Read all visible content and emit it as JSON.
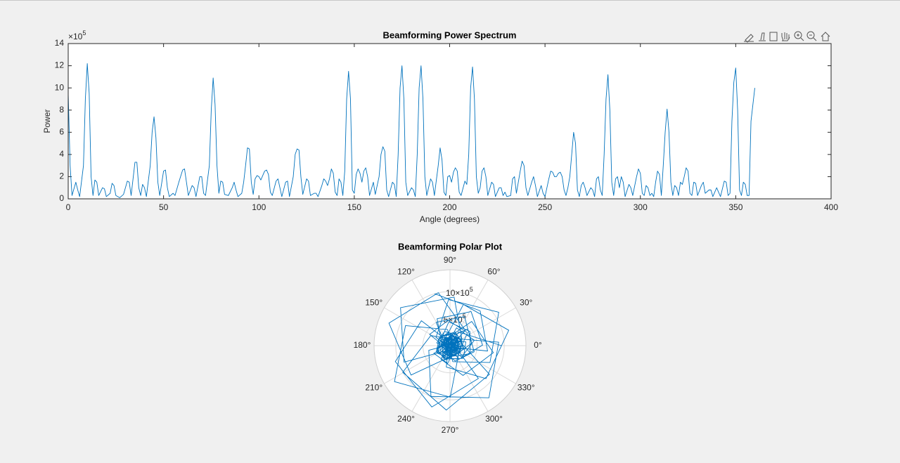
{
  "chart_data": [
    {
      "type": "line",
      "title": "Beamforming Power Spectrum",
      "xlabel": "Angle (degrees)",
      "ylabel": "Power",
      "y_exponent": {
        "base": "×10",
        "power": "5"
      },
      "xlim": [
        0,
        400
      ],
      "xticks": [
        0,
        50,
        100,
        150,
        200,
        250,
        300,
        350,
        400
      ],
      "ylim": [
        0,
        14
      ],
      "yticks": [
        0,
        2,
        4,
        6,
        8,
        10,
        12,
        14
      ],
      "grid": false,
      "color": "#0072bd",
      "x": [
        0,
        1,
        2,
        4,
        5,
        6,
        8,
        9,
        10,
        11,
        12,
        13,
        14,
        15,
        16,
        18,
        19,
        20,
        22,
        23,
        24,
        25,
        27,
        29,
        31,
        32,
        33,
        35,
        36,
        37,
        38,
        39,
        40,
        41,
        43,
        44,
        45,
        46,
        47,
        48,
        50,
        51,
        52,
        53,
        55,
        56,
        58,
        60,
        61,
        62,
        63,
        65,
        66,
        67,
        69,
        70,
        71,
        72,
        74,
        75,
        76,
        77,
        78,
        79,
        80,
        81,
        82,
        84,
        86,
        87,
        88,
        89,
        91,
        92,
        93,
        94,
        95,
        96,
        97,
        98,
        99,
        100,
        101,
        102,
        103,
        104,
        105,
        106,
        107,
        109,
        110,
        111,
        112,
        114,
        115,
        116,
        118,
        119,
        120,
        121,
        122,
        123,
        125,
        126,
        127,
        129,
        130,
        131,
        133,
        134,
        135,
        136,
        137,
        138,
        139,
        140,
        141,
        142,
        143,
        144,
        145,
        146,
        147,
        148,
        149,
        150,
        151,
        152,
        153,
        154,
        155,
        156,
        157,
        158,
        160,
        161,
        163,
        164,
        165,
        166,
        167,
        168,
        170,
        171,
        172,
        173,
        174,
        175,
        176,
        177,
        178,
        180,
        181,
        182,
        183,
        184,
        185,
        186,
        187,
        188,
        190,
        191,
        192,
        194,
        195,
        196,
        197,
        198,
        199,
        200,
        201,
        202,
        203,
        204,
        205,
        206,
        208,
        209,
        210,
        211,
        212,
        213,
        214,
        215,
        216,
        217,
        218,
        219,
        220,
        222,
        223,
        224,
        226,
        227,
        228,
        229,
        230,
        232,
        233,
        234,
        235,
        237,
        238,
        239,
        240,
        241,
        243,
        244,
        245,
        246,
        248,
        249,
        250,
        252,
        253,
        254,
        255,
        256,
        257,
        258,
        259,
        260,
        261,
        262,
        263,
        264,
        265,
        266,
        267,
        268,
        269,
        270,
        271,
        272,
        274,
        275,
        276,
        277,
        278,
        279,
        280,
        281,
        282,
        283,
        284,
        285,
        286,
        287,
        288,
        289,
        290,
        291,
        292,
        294,
        295,
        296,
        298,
        299,
        300,
        301,
        302,
        303,
        304,
        305,
        306,
        307,
        308,
        309,
        310,
        311,
        312,
        313,
        314,
        315,
        316,
        317,
        318,
        319,
        320,
        321,
        322,
        323,
        324,
        325,
        326,
        327,
        328,
        329,
        330,
        332,
        333,
        334,
        336,
        337,
        338,
        340,
        341,
        342,
        344,
        345,
        346,
        347,
        348,
        349,
        350,
        351,
        352,
        353,
        354,
        355,
        356,
        357,
        358,
        359,
        360
      ],
      "values": [
        9.5,
        3,
        0.3,
        1.5,
        0.8,
        0.2,
        3,
        9,
        12.2,
        9.5,
        2,
        0.3,
        1.7,
        1.5,
        0.3,
        1,
        0.9,
        0.2,
        0.5,
        1.4,
        1.2,
        0.3,
        0.1,
        0.4,
        1.6,
        1.5,
        0.3,
        3.3,
        3.3,
        1,
        0.3,
        1.3,
        1,
        0.2,
        3,
        6,
        7.4,
        5.5,
        1.5,
        0.3,
        2.5,
        2.6,
        1,
        0.2,
        0.5,
        0.3,
        1.5,
        2.6,
        2.7,
        1.5,
        0.3,
        1.2,
        1,
        0.2,
        2,
        2,
        0.5,
        0.3,
        3,
        8,
        10.9,
        8.5,
        3,
        0.5,
        1.6,
        1.5,
        0.4,
        0.3,
        1,
        1.5,
        0.8,
        0.2,
        0.5,
        1.5,
        3,
        4.6,
        4.5,
        1.5,
        0.4,
        1.8,
        2.1,
        2,
        1.7,
        2.1,
        2.5,
        2.6,
        2.2,
        0.6,
        0.3,
        1.6,
        1.8,
        1,
        0.2,
        1.5,
        1.6,
        0.2,
        2,
        4,
        4.5,
        4.4,
        2,
        0.4,
        1.8,
        1.6,
        0.3,
        0.5,
        0.5,
        0.2,
        1.2,
        1.8,
        1.6,
        1.2,
        1.8,
        2.7,
        2.3,
        0.6,
        0.3,
        1.8,
        1.5,
        0.3,
        2.5,
        9,
        11.5,
        9,
        0.8,
        0.5,
        2.2,
        2.7,
        2.3,
        1.5,
        2.5,
        2.8,
        2,
        0.3,
        1.5,
        0.4,
        2,
        4,
        4.7,
        4.3,
        0.8,
        0.2,
        1.5,
        1.3,
        0.2,
        4,
        10,
        12,
        9,
        1.5,
        0.3,
        1,
        0.8,
        0.2,
        4,
        10,
        12,
        9,
        2,
        0.3,
        1.8,
        1.5,
        0.3,
        3,
        4.6,
        3.5,
        0.6,
        0.3,
        2,
        2.1,
        1.5,
        2.4,
        2.8,
        2.5,
        0.6,
        0.3,
        1.6,
        1.3,
        4,
        10,
        11.9,
        9,
        2,
        0.5,
        1,
        2.5,
        2.8,
        2,
        0.3,
        1.5,
        1.3,
        0.2,
        1,
        1,
        0.3,
        0.6,
        0.2,
        0.3,
        1.8,
        2,
        0.5,
        2.5,
        3.4,
        3,
        1,
        0.3,
        1.5,
        2,
        1.2,
        0.2,
        1.2,
        0.5,
        0.2,
        1.8,
        2.5,
        2.4,
        2,
        2,
        2.3,
        2.4,
        2,
        0.8,
        0.3,
        1,
        2,
        4,
        6,
        5,
        0.8,
        0.2,
        1.2,
        1.5,
        1,
        0.3,
        1,
        0.8,
        0.2,
        1.8,
        2,
        0.8,
        0.3,
        4,
        9,
        11.2,
        8,
        1.5,
        0.3,
        1.8,
        2,
        1,
        2,
        1.5,
        0.2,
        1.3,
        1,
        0.3,
        2,
        2.7,
        2.3,
        0.5,
        0.3,
        1.2,
        1,
        0.3,
        0.5,
        0.2,
        1.5,
        2.5,
        2.2,
        0.3,
        3,
        6,
        8.1,
        6,
        1.5,
        0.3,
        1.2,
        1,
        0.3,
        1.5,
        1.3,
        2,
        2.8,
        2.5,
        0.5,
        0.3,
        1.5,
        1.4,
        0.3,
        1.2,
        1.5,
        0.5,
        0.8,
        0.8,
        0.2,
        1,
        0.6,
        0.2,
        1.6,
        1.5,
        0.3,
        0.5,
        7,
        10.5,
        11.8,
        8,
        0.8,
        0.3,
        1.5,
        1.3,
        0.3,
        0.3,
        7,
        8.5,
        10
      ]
    },
    {
      "type": "polar",
      "title": "Beamforming Polar Plot",
      "theta_unit": "radians",
      "color": "#0072bd",
      "r_exponent": {
        "base": "×10",
        "power": "5"
      },
      "rlim": [
        0,
        14
      ],
      "rticks": [
        5,
        10
      ],
      "thetaticks": [
        {
          "value": 0,
          "label": "0°"
        },
        {
          "value": 30,
          "label": "30°"
        },
        {
          "value": 60,
          "label": "60°"
        },
        {
          "value": 90,
          "label": "90°"
        },
        {
          "value": 120,
          "label": "120°"
        },
        {
          "value": 150,
          "label": "150°"
        },
        {
          "value": 180,
          "label": "180°"
        },
        {
          "value": 210,
          "label": "210°"
        },
        {
          "value": 240,
          "label": "240°"
        },
        {
          "value": 270,
          "label": "270°"
        },
        {
          "value": 300,
          "label": "300°"
        },
        {
          "value": 330,
          "label": "330°"
        }
      ],
      "theta": [
        0,
        1,
        2,
        4,
        5,
        6,
        8,
        9,
        10,
        11,
        12,
        13,
        14,
        15,
        16,
        18,
        19,
        20,
        22,
        23,
        24,
        25,
        27,
        29,
        31,
        32,
        33,
        35,
        36,
        37,
        38,
        39,
        40,
        41,
        43,
        44,
        45,
        46,
        47,
        48,
        50,
        51,
        52,
        53,
        55,
        56,
        58,
        60,
        61,
        62,
        63,
        65,
        66,
        67,
        69,
        70,
        71,
        72,
        74,
        75,
        76,
        77,
        78,
        79,
        80,
        81,
        82,
        84,
        86,
        87,
        88,
        89,
        91,
        92,
        93,
        94,
        95,
        96,
        97,
        98,
        99,
        100,
        101,
        102,
        103,
        104,
        105,
        106,
        107,
        109,
        110,
        111,
        112,
        114,
        115,
        116,
        118,
        119,
        120,
        121,
        122,
        123,
        125,
        126,
        127,
        129,
        130,
        131,
        133,
        134,
        135,
        136,
        137,
        138,
        139,
        140,
        141,
        142,
        143,
        144,
        145,
        146,
        147,
        148,
        149,
        150,
        151,
        152,
        153,
        154,
        155,
        156,
        157,
        158,
        160,
        161,
        163,
        164,
        165,
        166,
        167,
        168,
        170,
        171,
        172,
        173,
        174,
        175,
        176,
        177,
        178,
        180,
        181,
        182,
        183,
        184,
        185,
        186,
        187,
        188,
        190,
        191,
        192,
        194,
        195,
        196,
        197,
        198,
        199,
        200,
        201,
        202,
        203,
        204,
        205,
        206,
        208,
        209,
        210,
        211,
        212,
        213,
        214,
        215,
        216,
        217,
        218,
        219,
        220,
        222,
        223,
        224,
        226,
        227,
        228,
        229,
        230,
        232,
        233,
        234,
        235,
        237,
        238,
        239,
        240,
        241,
        243,
        244,
        245,
        246,
        248,
        249,
        250,
        252,
        253,
        254,
        255,
        256,
        257,
        258,
        259,
        260,
        261,
        262,
        263,
        264,
        265,
        266,
        267,
        268,
        269,
        270,
        271,
        272,
        274,
        275,
        276,
        277,
        278,
        279,
        280,
        281,
        282,
        283,
        284,
        285,
        286,
        287,
        288,
        289,
        290,
        291,
        292,
        294,
        295,
        296,
        298,
        299,
        300,
        301,
        302,
        303,
        304,
        305,
        306,
        307,
        308,
        309,
        310,
        311,
        312,
        313,
        314,
        315,
        316,
        317,
        318,
        319,
        320,
        321,
        322,
        323,
        324,
        325,
        326,
        327,
        328,
        329,
        330,
        332,
        333,
        334,
        336,
        337,
        338,
        340,
        341,
        342,
        344,
        345,
        346,
        347,
        348,
        349,
        350,
        351,
        352,
        353,
        354,
        355,
        356,
        357,
        358,
        359,
        360
      ],
      "r": [
        9.5,
        3,
        0.3,
        1.5,
        0.8,
        0.2,
        3,
        9,
        12.2,
        9.5,
        2,
        0.3,
        1.7,
        1.5,
        0.3,
        1,
        0.9,
        0.2,
        0.5,
        1.4,
        1.2,
        0.3,
        0.1,
        0.4,
        1.6,
        1.5,
        0.3,
        3.3,
        3.3,
        1,
        0.3,
        1.3,
        1,
        0.2,
        3,
        6,
        7.4,
        5.5,
        1.5,
        0.3,
        2.5,
        2.6,
        1,
        0.2,
        0.5,
        0.3,
        1.5,
        2.6,
        2.7,
        1.5,
        0.3,
        1.2,
        1,
        0.2,
        2,
        2,
        0.5,
        0.3,
        3,
        8,
        10.9,
        8.5,
        3,
        0.5,
        1.6,
        1.5,
        0.4,
        0.3,
        1,
        1.5,
        0.8,
        0.2,
        0.5,
        1.5,
        3,
        4.6,
        4.5,
        1.5,
        0.4,
        1.8,
        2.1,
        2,
        1.7,
        2.1,
        2.5,
        2.6,
        2.2,
        0.6,
        0.3,
        1.6,
        1.8,
        1,
        0.2,
        1.5,
        1.6,
        0.2,
        2,
        4,
        4.5,
        4.4,
        2,
        0.4,
        1.8,
        1.6,
        0.3,
        0.5,
        0.5,
        0.2,
        1.2,
        1.8,
        1.6,
        1.2,
        1.8,
        2.7,
        2.3,
        0.6,
        0.3,
        1.8,
        1.5,
        0.3,
        2.5,
        9,
        11.5,
        9,
        0.8,
        0.5,
        2.2,
        2.7,
        2.3,
        1.5,
        2.5,
        2.8,
        2,
        0.3,
        1.5,
        0.4,
        2,
        4,
        4.7,
        4.3,
        0.8,
        0.2,
        1.5,
        1.3,
        0.2,
        4,
        10,
        12,
        9,
        1.5,
        0.3,
        1,
        0.8,
        0.2,
        4,
        10,
        12,
        9,
        2,
        0.3,
        1.8,
        1.5,
        0.3,
        3,
        4.6,
        3.5,
        0.6,
        0.3,
        2,
        2.1,
        1.5,
        2.4,
        2.8,
        2.5,
        0.6,
        0.3,
        1.6,
        1.3,
        4,
        10,
        11.9,
        9,
        2,
        0.5,
        1,
        2.5,
        2.8,
        2,
        0.3,
        1.5,
        1.3,
        0.2,
        1,
        1,
        0.3,
        0.6,
        0.2,
        0.3,
        1.8,
        2,
        0.5,
        2.5,
        3.4,
        3,
        1,
        0.3,
        1.5,
        2,
        1.2,
        0.2,
        1.2,
        0.5,
        0.2,
        1.8,
        2.5,
        2.4,
        2,
        2,
        2.3,
        2.4,
        2,
        0.8,
        0.3,
        1,
        2,
        4,
        6,
        5,
        0.8,
        0.2,
        1.2,
        1.5,
        1,
        0.3,
        1,
        0.8,
        0.2,
        1.8,
        2,
        0.8,
        0.3,
        4,
        9,
        11.2,
        8,
        1.5,
        0.3,
        1.8,
        2,
        1,
        2,
        1.5,
        0.2,
        1.3,
        1,
        0.3,
        2,
        2.7,
        2.3,
        0.5,
        0.3,
        1.2,
        1,
        0.3,
        0.5,
        0.2,
        1.5,
        2.5,
        2.2,
        0.3,
        3,
        6,
        8.1,
        6,
        1.5,
        0.3,
        1.2,
        1,
        0.3,
        1.5,
        1.3,
        2,
        2.8,
        2.5,
        0.5,
        0.3,
        1.5,
        1.4,
        0.3,
        1.2,
        1.5,
        0.5,
        0.8,
        0.8,
        0.2,
        1,
        0.6,
        0.2,
        1.6,
        1.5,
        0.3,
        0.5,
        7,
        10.5,
        11.8,
        8,
        0.8,
        0.3,
        1.5,
        1.3,
        0.3,
        0.3,
        7,
        8.5,
        10
      ]
    }
  ]
}
